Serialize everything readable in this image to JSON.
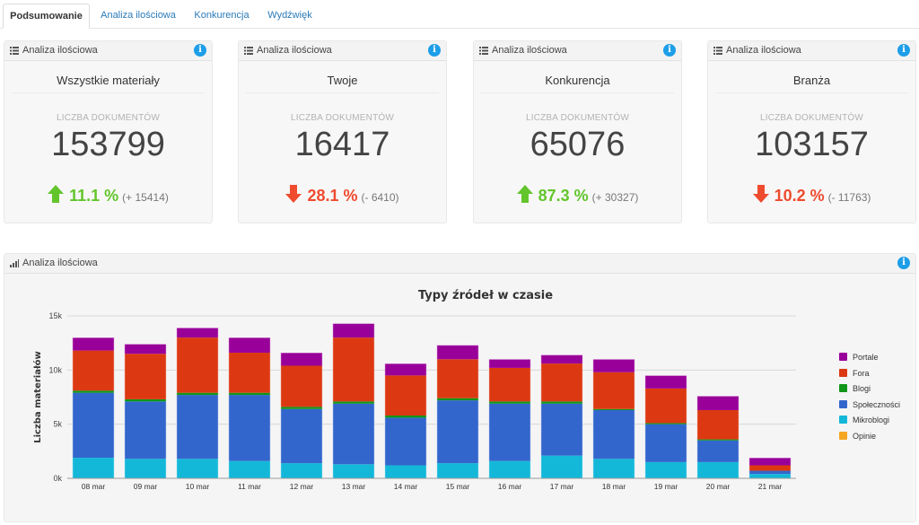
{
  "tabs": [
    "Podsumowanie",
    "Analiza ilościowa",
    "Konkurencja",
    "Wydźwięk"
  ],
  "cards": [
    {
      "header": "Analiza ilościowa",
      "name": "Wszystkie materiały",
      "sublabel": "LICZBA DOKUMENTÓW",
      "value": "153799",
      "trend": "up",
      "percent": "11.1 %",
      "diff": "(+ 15414)"
    },
    {
      "header": "Analiza ilościowa",
      "name": "Twoje",
      "sublabel": "LICZBA DOKUMENTÓW",
      "value": "16417",
      "trend": "down",
      "percent": "28.1 %",
      "diff": "(- 6410)"
    },
    {
      "header": "Analiza ilościowa",
      "name": "Konkurencja",
      "sublabel": "LICZBA DOKUMENTÓW",
      "value": "65076",
      "trend": "up",
      "percent": "87.3 %",
      "diff": "(+ 30327)"
    },
    {
      "header": "Analiza ilościowa",
      "name": "Branża",
      "sublabel": "LICZBA DOKUMENTÓW",
      "value": "103157",
      "trend": "down",
      "percent": "10.2 %",
      "diff": "(- 11763)"
    }
  ],
  "chart_panel": {
    "header": "Analiza ilościowa"
  },
  "info_icon_glyph": "i",
  "colors": {
    "up": "#63c52c",
    "down": "#ef4b2f",
    "accent": "#1e9ee8"
  },
  "chart_data": {
    "type": "bar",
    "stacked": true,
    "title": "Typy źródeł w czasie",
    "xlabel": "",
    "ylabel": "Liczba materiałów",
    "ylim": [
      0,
      15000
    ],
    "yticks": [
      0,
      5000,
      10000,
      15000
    ],
    "ytick_labels": [
      "0k",
      "5k",
      "10k",
      "15k"
    ],
    "grid": true,
    "legend_position": "right",
    "categories": [
      "08 mar",
      "09 mar",
      "10 mar",
      "11 mar",
      "12 mar",
      "13 mar",
      "14 mar",
      "15 mar",
      "16 mar",
      "17 mar",
      "18 mar",
      "19 mar",
      "20 mar",
      "21 mar"
    ],
    "series": [
      {
        "name": "Opinie",
        "color": "#f5a623",
        "values": [
          0,
          0,
          0,
          0,
          0,
          0,
          0,
          0,
          0,
          0,
          0,
          0,
          0,
          0
        ]
      },
      {
        "name": "Mikroblogi",
        "color": "#13b8d9",
        "values": [
          1900,
          1800,
          1800,
          1600,
          1400,
          1300,
          1200,
          1400,
          1600,
          2100,
          1800,
          1500,
          1500,
          400
        ]
      },
      {
        "name": "Społeczności",
        "color": "#3366cc",
        "values": [
          6000,
          5300,
          5900,
          6100,
          5000,
          5600,
          4400,
          5800,
          5300,
          4800,
          4500,
          3500,
          2000,
          300
        ]
      },
      {
        "name": "Blogi",
        "color": "#109618",
        "values": [
          200,
          200,
          200,
          200,
          200,
          200,
          200,
          200,
          200,
          200,
          100,
          100,
          100,
          0
        ]
      },
      {
        "name": "Fora",
        "color": "#dc3912",
        "values": [
          3700,
          4200,
          5100,
          3700,
          3800,
          5900,
          3700,
          3600,
          3100,
          3500,
          3400,
          3200,
          2700,
          500
        ]
      },
      {
        "name": "Portale",
        "color": "#990099",
        "values": [
          1200,
          900,
          900,
          1400,
          1200,
          1300,
          1100,
          1300,
          800,
          800,
          1200,
          1200,
          1300,
          700
        ]
      }
    ],
    "legend_order": [
      "Portale",
      "Fora",
      "Blogi",
      "Społeczności",
      "Mikroblogi",
      "Opinie"
    ]
  }
}
